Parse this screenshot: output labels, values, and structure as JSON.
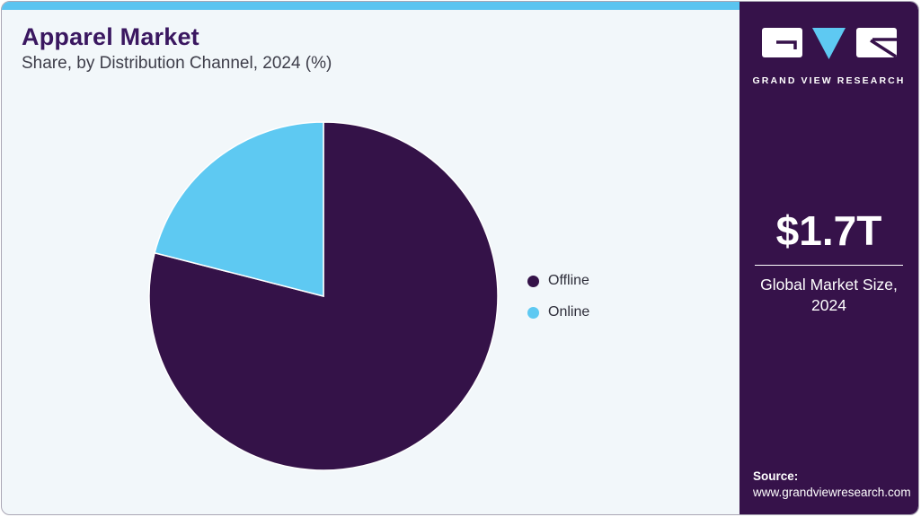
{
  "header": {
    "title": "Apparel Market",
    "subtitle": "Share, by Distribution Channel, 2024 (%)"
  },
  "chart_data": {
    "type": "pie",
    "title": "Apparel Market Share, by Distribution Channel, 2024 (%)",
    "categories": [
      "Offline",
      "Online"
    ],
    "values": [
      79,
      21
    ],
    "unit": "%",
    "colors": [
      "#341248",
      "#5ec9f2"
    ],
    "start_angle_deg": -90,
    "direction": "clockwise",
    "legend_position": "right",
    "slice_border_color": "#ffffff"
  },
  "sidebar": {
    "logo": {
      "text": "GRAND VIEW RESEARCH"
    },
    "market_size": {
      "value": "$1.7T",
      "label": "Global Market Size, 2024"
    },
    "source": {
      "label": "Source:",
      "url": "www.grandviewresearch.com"
    }
  },
  "colors": {
    "accent_bar": "#5bc4f0",
    "card_background": "#f2f7fa",
    "sidebar_background": "#36124a",
    "title_text": "#3a1760",
    "subtitle_text": "#3d3d49",
    "legend_text": "#2e2e3a"
  }
}
